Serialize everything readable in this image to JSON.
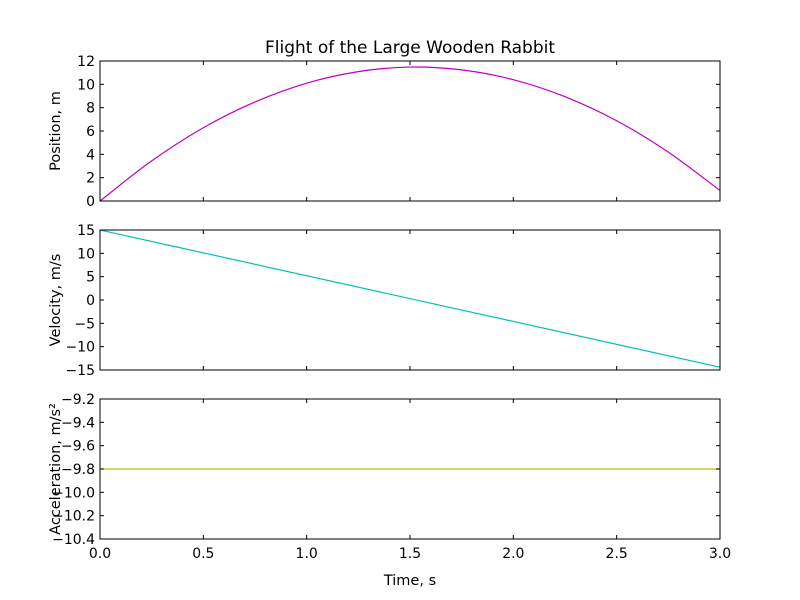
{
  "chart_data": {
    "type": "line",
    "title": "Flight of the Large Wooden Rabbit",
    "xlabel": "Time, s",
    "xlim": [
      0,
      3
    ],
    "x_ticks": [
      "0.0",
      "0.5",
      "1.0",
      "1.5",
      "2.0",
      "2.5",
      "3.0"
    ],
    "grid": false,
    "panels": [
      {
        "ylabel": "Position, m",
        "ylim": [
          0,
          12
        ],
        "y_ticks": [
          "0",
          "2",
          "4",
          "6",
          "8",
          "10",
          "12"
        ],
        "series": [
          {
            "color": "#bf00bf",
            "x": [
              0,
              0.25,
              0.5,
              0.75,
              1.0,
              1.25,
              1.5,
              1.75,
              2.0,
              2.25,
              2.5,
              2.75,
              3.0
            ],
            "values": [
              0,
              3.44,
              6.28,
              8.49,
              10.1,
              11.09,
              11.48,
              11.24,
              10.4,
              8.94,
              6.88,
              4.19,
              0.9
            ]
          }
        ]
      },
      {
        "ylabel": "Velocity, m/s",
        "ylim": [
          -15,
          15
        ],
        "y_ticks": [
          "15",
          "10",
          "5",
          "0",
          "−5",
          "−10",
          "−15"
        ],
        "series": [
          {
            "color": "#00bfbf",
            "x": [
              0,
              3.0
            ],
            "values": [
              15.0,
              -14.4
            ]
          }
        ]
      },
      {
        "ylabel": "Acceleration, m/s²",
        "ylim": [
          -10.4,
          -9.2
        ],
        "y_ticks": [
          "−9.2",
          "−9.4",
          "−9.6",
          "−9.8",
          "−10.0",
          "−10.2",
          "−10.4"
        ],
        "series": [
          {
            "color": "#bfbf00",
            "x": [
              0,
              3.0
            ],
            "values": [
              -9.8,
              -9.8
            ]
          }
        ]
      }
    ]
  }
}
